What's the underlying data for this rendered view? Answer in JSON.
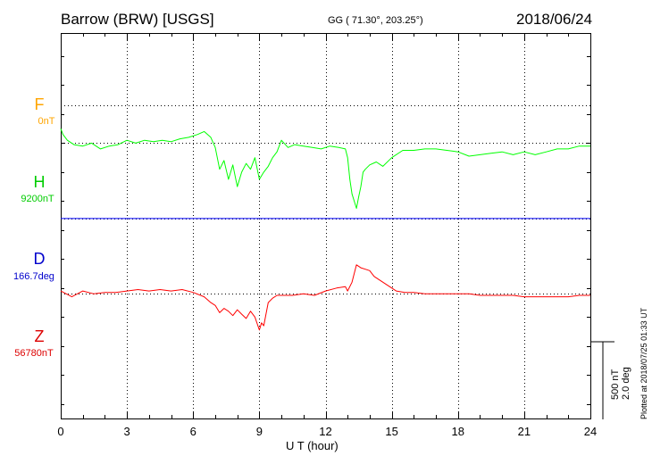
{
  "header": {
    "station": "Barrow (BRW)  [USGS]",
    "coords": "GG ( 71.30°, 203.25°)",
    "date": "2018/06/24"
  },
  "components": [
    {
      "name": "F",
      "baseline": "0nT",
      "color": "#ffa500"
    },
    {
      "name": "H",
      "baseline": "9200nT",
      "color": "#00cc00"
    },
    {
      "name": "D",
      "baseline": "166.7deg",
      "color": "#0000cc"
    },
    {
      "name": "Z",
      "baseline": "56780nT",
      "color": "#dd0000"
    }
  ],
  "scale": {
    "nt": "500 nT",
    "deg": "2.0 deg"
  },
  "plotted": "Plotted at 2018/07/25 01:33 UT",
  "chart_data": {
    "type": "line",
    "title": "Barrow (BRW)  [USGS]",
    "xlabel": "U T (hour)",
    "ylabel": "",
    "xlim": [
      0,
      24
    ],
    "xticks": [
      0,
      3,
      6,
      9,
      12,
      15,
      18,
      21,
      24
    ],
    "ylim_nT": [
      -1380,
      1280
    ],
    "scale_bar_nT": 500,
    "grid": true,
    "series": [
      {
        "name": "H",
        "color": "#00ff00",
        "offset_nT": 520,
        "x": [
          0,
          0.1,
          0.3,
          0.6,
          1.0,
          1.4,
          1.8,
          2.2,
          2.6,
          3.0,
          3.4,
          3.8,
          4.2,
          4.6,
          5.0,
          5.4,
          5.8,
          6.2,
          6.5,
          6.8,
          7.0,
          7.2,
          7.4,
          7.6,
          7.8,
          8.0,
          8.2,
          8.4,
          8.6,
          8.8,
          9.0,
          9.2,
          9.4,
          9.6,
          9.8,
          10.0,
          10.3,
          10.6,
          11.0,
          11.4,
          11.8,
          12.2,
          12.6,
          12.9,
          13.0,
          13.1,
          13.2,
          13.3,
          13.4,
          13.5,
          13.6,
          13.7,
          13.8,
          14.0,
          14.3,
          14.6,
          15.0,
          15.5,
          16.0,
          16.5,
          17.0,
          17.5,
          18.0,
          18.5,
          19.0,
          19.5,
          20.0,
          20.5,
          21.0,
          21.5,
          22.0,
          22.5,
          23.0,
          23.5,
          24.0
        ],
        "y": [
          100,
          60,
          20,
          -10,
          -20,
          0,
          -40,
          -20,
          -10,
          20,
          0,
          20,
          10,
          20,
          10,
          30,
          40,
          60,
          80,
          40,
          -30,
          -180,
          -120,
          -250,
          -150,
          -300,
          -200,
          -140,
          -180,
          -100,
          -250,
          -200,
          -160,
          -100,
          -60,
          20,
          -30,
          -10,
          -20,
          -30,
          -40,
          -20,
          -30,
          -40,
          -100,
          -250,
          -350,
          -400,
          -450,
          -370,
          -300,
          -200,
          -180,
          -150,
          -130,
          -160,
          -100,
          -50,
          -50,
          -40,
          -40,
          -50,
          -60,
          -90,
          -80,
          -70,
          -60,
          -80,
          -60,
          -80,
          -60,
          -40,
          -40,
          -20,
          -20
        ]
      },
      {
        "name": "D",
        "color": "#0000ff",
        "offset_nT": 0,
        "x": [
          0,
          24
        ],
        "y": [
          0,
          0
        ]
      },
      {
        "name": "Z",
        "color": "#ff0000",
        "offset_nT": -520,
        "x": [
          0,
          0.5,
          1.0,
          1.5,
          2.0,
          2.5,
          3.0,
          3.5,
          4.0,
          4.5,
          5.0,
          5.5,
          6.0,
          6.5,
          6.8,
          7.0,
          7.2,
          7.4,
          7.6,
          7.8,
          8.0,
          8.2,
          8.4,
          8.6,
          8.8,
          9.0,
          9.1,
          9.2,
          9.4,
          9.6,
          9.8,
          10.0,
          10.5,
          11.0,
          11.5,
          12.0,
          12.5,
          12.9,
          13.0,
          13.2,
          13.4,
          13.6,
          13.8,
          14.0,
          14.2,
          14.5,
          14.8,
          15.2,
          15.6,
          16.0,
          16.5,
          17.0,
          17.5,
          18.0,
          18.5,
          19.0,
          19.5,
          20.0,
          20.5,
          21.0,
          21.5,
          22.0,
          22.5,
          23.0,
          23.5,
          24.0
        ],
        "y": [
          20,
          -20,
          20,
          0,
          10,
          10,
          20,
          30,
          20,
          30,
          20,
          30,
          10,
          -20,
          -60,
          -80,
          -130,
          -100,
          -120,
          -150,
          -110,
          -140,
          -170,
          -120,
          -160,
          -250,
          -200,
          -220,
          -60,
          -30,
          -10,
          -10,
          -10,
          0,
          -10,
          20,
          40,
          50,
          20,
          80,
          200,
          180,
          170,
          160,
          120,
          90,
          60,
          20,
          10,
          10,
          0,
          0,
          0,
          0,
          0,
          -10,
          -10,
          -10,
          -10,
          -20,
          -20,
          -20,
          -20,
          -20,
          -10,
          -10
        ]
      }
    ]
  }
}
